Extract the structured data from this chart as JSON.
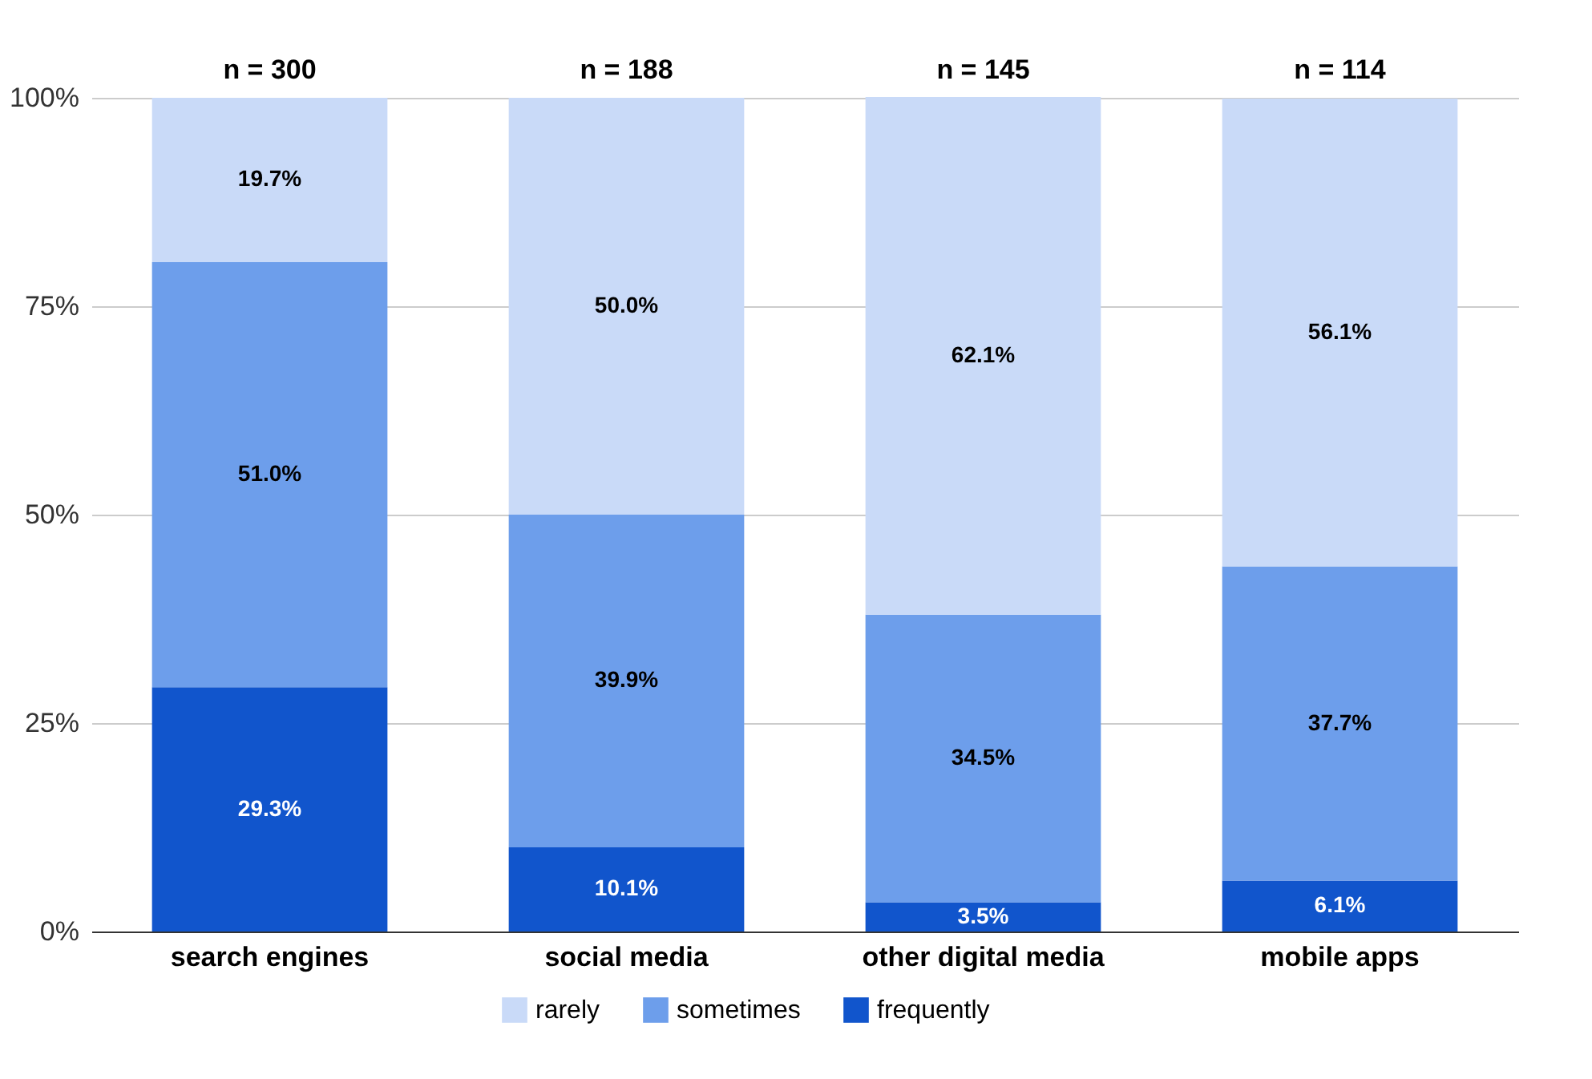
{
  "chart_data": {
    "type": "bar",
    "stacked": true,
    "categories": [
      "search engines",
      "social media",
      "other digital media",
      "mobile apps"
    ],
    "series": [
      {
        "name": "frequently",
        "color": "#1155cc",
        "values": [
          29.3,
          10.1,
          3.5,
          6.1
        ]
      },
      {
        "name": "sometimes",
        "color": "#6d9eeb",
        "values": [
          51.0,
          39.9,
          34.5,
          37.7
        ]
      },
      {
        "name": "rarely",
        "color": "#c9daf8",
        "values": [
          19.7,
          50.0,
          62.1,
          56.1
        ]
      }
    ],
    "ylim": [
      0,
      100
    ],
    "yticks": [
      {
        "value": 0,
        "label": "0%"
      },
      {
        "value": 25,
        "label": "25%"
      },
      {
        "value": 50,
        "label": "50%"
      },
      {
        "value": 75,
        "label": "75%"
      },
      {
        "value": 100,
        "label": "100%"
      }
    ],
    "value_labels": [
      [
        "29.3%",
        "10.1%",
        "3.5%",
        "6.1%"
      ],
      [
        "51.0%",
        "39.9%",
        "34.5%",
        "37.7%"
      ],
      [
        "19.7%",
        "50.0%",
        "62.1%",
        "56.1%"
      ]
    ],
    "annotations": [
      "n = 300",
      "n = 188",
      "n = 145",
      "n = 114"
    ],
    "grid": "y",
    "legend": "bottom"
  }
}
